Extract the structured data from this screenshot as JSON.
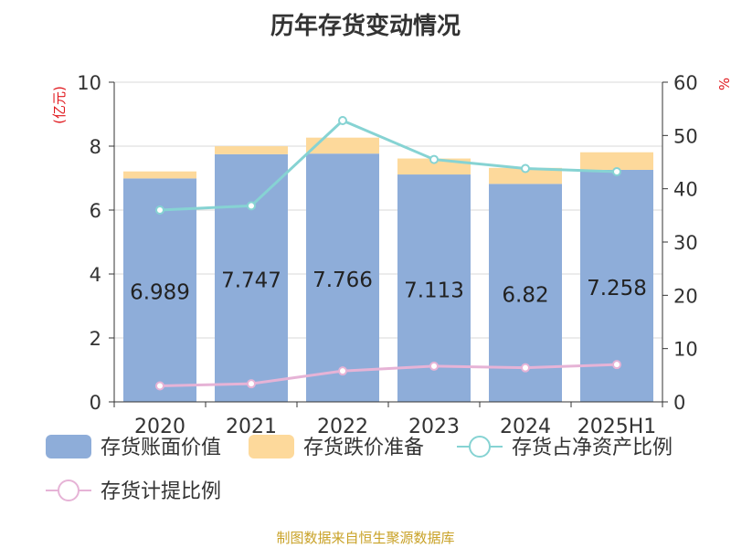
{
  "title": "历年存货变动情况",
  "source": "制图数据来自恒生聚源数据库",
  "chart_data": {
    "type": "bar",
    "categories": [
      "2020",
      "2021",
      "2022",
      "2023",
      "2024",
      "2025H1"
    ],
    "left_axis": {
      "label": "(亿元)",
      "range": [
        0,
        10
      ],
      "ticks": [
        0,
        2,
        4,
        6,
        8,
        10
      ]
    },
    "right_axis": {
      "label": "%",
      "range": [
        0,
        60
      ],
      "ticks": [
        0,
        10,
        20,
        30,
        40,
        50,
        60
      ]
    },
    "grid": true,
    "legend_position": "bottom",
    "series": [
      {
        "name": "存货账面价值",
        "kind": "bar",
        "axis": "left",
        "color": "#8eadd9",
        "values": [
          6.989,
          7.747,
          7.766,
          7.113,
          6.82,
          7.258
        ],
        "labels": [
          "6.989",
          "7.747",
          "7.766",
          "7.113",
          "6.82",
          "7.258"
        ]
      },
      {
        "name": "存货跌价准备",
        "kind": "bar-stacked",
        "axis": "left",
        "color": "#fdd99b",
        "values": [
          0.22,
          0.25,
          0.5,
          0.5,
          0.5,
          0.55
        ]
      },
      {
        "name": "存货占净资产比例",
        "kind": "line",
        "axis": "right",
        "color": "#86d3d3",
        "values": [
          36,
          36.8,
          52.8,
          45.5,
          43.8,
          43.2
        ]
      },
      {
        "name": "存货计提比例",
        "kind": "line",
        "axis": "right",
        "color": "#e6b3d6",
        "values": [
          3.0,
          3.4,
          5.8,
          6.7,
          6.4,
          7.0
        ]
      }
    ]
  }
}
